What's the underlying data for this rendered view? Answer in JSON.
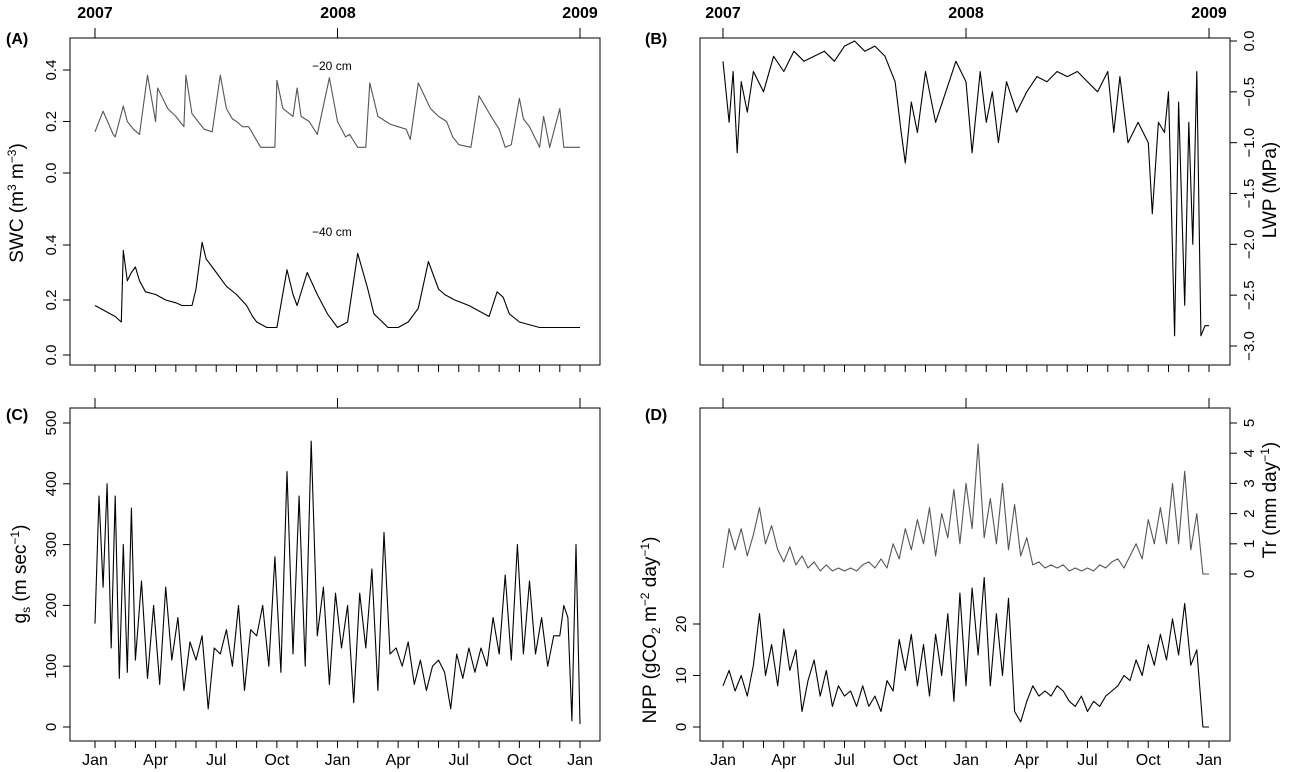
{
  "figure": {
    "year_labels": [
      "2007",
      "2008",
      "2009"
    ],
    "month_labels": [
      "Jan",
      "Apr",
      "Jul",
      "Oct",
      "Jan",
      "Apr",
      "Jul",
      "Oct",
      "Jan"
    ]
  },
  "chart_data": [
    {
      "panel": "(A)",
      "type": "line",
      "ylabel_main": "SWC (m",
      "ylabel_sup1": "3",
      "ylabel_mid": " m",
      "ylabel_sup2": "−3",
      "ylabel_end": ")",
      "yticks": [
        "0.0",
        "0.2",
        "0.4"
      ],
      "ylim": [
        0,
        0.5
      ],
      "xlim": [
        0,
        24
      ],
      "color": "#555555",
      "series": [
        {
          "name": "−20 cm",
          "color": "#555555",
          "x": [
            0,
            0.4,
            0.9,
            1.0,
            1.4,
            1.6,
            1.9,
            2.2,
            2.6,
            3.0,
            3.1,
            3.6,
            4.0,
            4.4,
            4.5,
            4.8,
            5.0,
            5.4,
            5.8,
            6.2,
            6.5,
            6.8,
            7.0,
            7.3,
            7.6,
            8.2,
            8.9,
            9.0,
            9.3,
            9.8,
            10.0,
            10.2,
            10.6,
            11.0,
            11.6,
            12.0,
            12.4,
            12.6,
            13.0,
            13.4,
            13.6,
            14.0,
            14.4,
            14.6,
            15.0,
            15.4,
            15.6,
            16.0,
            16.6,
            17.0,
            17.4,
            17.7,
            18.0,
            18.6,
            19.0,
            19.6,
            20.0,
            20.3,
            20.6,
            21.0,
            21.2,
            21.5,
            22.0,
            22.2,
            22.5,
            23.0,
            23.2,
            23.5,
            24.0
          ],
          "y": [
            0.16,
            0.24,
            0.15,
            0.14,
            0.26,
            0.2,
            0.17,
            0.15,
            0.38,
            0.2,
            0.33,
            0.25,
            0.22,
            0.18,
            0.38,
            0.23,
            0.21,
            0.17,
            0.16,
            0.38,
            0.25,
            0.21,
            0.2,
            0.18,
            0.18,
            0.1,
            0.1,
            0.36,
            0.25,
            0.22,
            0.33,
            0.22,
            0.2,
            0.15,
            0.37,
            0.2,
            0.14,
            0.15,
            0.1,
            0.1,
            0.35,
            0.22,
            0.2,
            0.19,
            0.18,
            0.17,
            0.13,
            0.35,
            0.25,
            0.22,
            0.2,
            0.14,
            0.11,
            0.1,
            0.3,
            0.22,
            0.17,
            0.1,
            0.11,
            0.29,
            0.21,
            0.18,
            0.1,
            0.22,
            0.1,
            0.25,
            0.1,
            0.1,
            0.1
          ]
        }
      ]
    },
    {
      "panel": "(A)",
      "type": "line",
      "color": "#000000",
      "yticks": [
        "0.0",
        "0.2",
        "0.4"
      ],
      "ylim": [
        0,
        0.5
      ],
      "xlim": [
        0,
        24
      ],
      "series": [
        {
          "name": "−40 cm",
          "color": "#000000",
          "x": [
            0,
            0.5,
            1.0,
            1.3,
            1.4,
            1.6,
            1.8,
            2.0,
            2.2,
            2.5,
            3.0,
            3.5,
            4.0,
            4.3,
            4.8,
            5.0,
            5.3,
            5.5,
            6.0,
            6.5,
            7.0,
            7.5,
            7.8,
            8.0,
            8.5,
            9.0,
            9.5,
            9.8,
            10.0,
            10.5,
            11.0,
            11.5,
            12.0,
            12.5,
            13.0,
            13.5,
            13.8,
            14.5,
            15.0,
            15.5,
            16.0,
            16.5,
            17.0,
            17.3,
            17.8,
            18.5,
            19.0,
            19.5,
            19.9,
            20.2,
            20.5,
            21.0,
            22.0,
            23.0,
            24.0
          ],
          "y": [
            0.18,
            0.16,
            0.14,
            0.12,
            0.38,
            0.27,
            0.3,
            0.32,
            0.27,
            0.23,
            0.22,
            0.2,
            0.19,
            0.18,
            0.18,
            0.24,
            0.41,
            0.35,
            0.3,
            0.25,
            0.22,
            0.18,
            0.14,
            0.12,
            0.1,
            0.1,
            0.31,
            0.22,
            0.18,
            0.3,
            0.22,
            0.15,
            0.1,
            0.12,
            0.37,
            0.24,
            0.15,
            0.1,
            0.1,
            0.12,
            0.17,
            0.34,
            0.24,
            0.22,
            0.2,
            0.18,
            0.16,
            0.14,
            0.23,
            0.21,
            0.15,
            0.12,
            0.1,
            0.1,
            0.1
          ]
        }
      ]
    },
    {
      "panel": "(B)",
      "type": "line",
      "ylabel": "LWP (MPa)",
      "yticks": [
        "−3.0",
        "−2.5",
        "−2.0",
        "−1.5",
        "−1.0",
        "−0.5",
        "0.0"
      ],
      "ylim": [
        -3.0,
        0.0
      ],
      "xlim": [
        0,
        24
      ],
      "color": "#000000",
      "series": [
        {
          "x": [
            0,
            0.3,
            0.5,
            0.7,
            0.9,
            1.2,
            1.5,
            2.0,
            2.5,
            3.0,
            3.5,
            4.0,
            4.5,
            5.0,
            5.5,
            6.0,
            6.5,
            7.0,
            7.5,
            8.0,
            8.5,
            8.8,
            9.0,
            9.3,
            9.6,
            10.0,
            10.5,
            11.0,
            11.5,
            12.0,
            12.3,
            12.7,
            13.0,
            13.3,
            13.6,
            14.0,
            14.5,
            15.0,
            15.5,
            16.0,
            16.5,
            17.0,
            17.5,
            18.0,
            18.5,
            19.0,
            19.3,
            19.6,
            20.0,
            20.5,
            21.0,
            21.2,
            21.5,
            21.8,
            22.0,
            22.3,
            22.5,
            22.8,
            23.0,
            23.2,
            23.4,
            23.6,
            23.8,
            24.0
          ],
          "y": [
            -0.2,
            -0.8,
            -0.3,
            -1.1,
            -0.4,
            -0.7,
            -0.3,
            -0.5,
            -0.15,
            -0.3,
            -0.1,
            -0.2,
            -0.15,
            -0.1,
            -0.2,
            -0.05,
            0.0,
            -0.1,
            -0.05,
            -0.15,
            -0.4,
            -0.9,
            -1.2,
            -0.6,
            -0.9,
            -0.3,
            -0.8,
            -0.5,
            -0.2,
            -0.4,
            -1.1,
            -0.3,
            -0.8,
            -0.5,
            -1.0,
            -0.4,
            -0.7,
            -0.5,
            -0.35,
            -0.4,
            -0.3,
            -0.35,
            -0.3,
            -0.4,
            -0.5,
            -0.3,
            -0.9,
            -0.35,
            -1.0,
            -0.8,
            -1.0,
            -1.7,
            -0.8,
            -0.9,
            -0.5,
            -2.9,
            -0.6,
            -2.6,
            -0.8,
            -2.0,
            -0.3,
            -2.9,
            -2.8,
            -2.8
          ]
        }
      ]
    },
    {
      "panel": "(C)",
      "type": "line",
      "ylabel_main": "g",
      "ylabel_sub": "s",
      "ylabel_rest": " (m sec",
      "ylabel_sup": "−1",
      "ylabel_end": ")",
      "yticks": [
        "0",
        "100",
        "200",
        "300",
        "400",
        "500"
      ],
      "ylim": [
        0,
        500
      ],
      "xlim": [
        0,
        24
      ],
      "color": "#000000",
      "series": [
        {
          "x": [
            0,
            0.2,
            0.4,
            0.6,
            0.8,
            1.0,
            1.2,
            1.4,
            1.6,
            1.8,
            2.0,
            2.3,
            2.6,
            2.9,
            3.2,
            3.5,
            3.8,
            4.1,
            4.4,
            4.7,
            5.0,
            5.3,
            5.6,
            5.9,
            6.2,
            6.5,
            6.8,
            7.1,
            7.4,
            7.7,
            8.0,
            8.3,
            8.6,
            8.9,
            9.2,
            9.5,
            9.8,
            10.1,
            10.4,
            10.7,
            11.0,
            11.3,
            11.6,
            11.9,
            12.2,
            12.5,
            12.8,
            13.1,
            13.4,
            13.7,
            14.0,
            14.3,
            14.6,
            14.9,
            15.2,
            15.5,
            15.8,
            16.1,
            16.4,
            16.7,
            17.0,
            17.3,
            17.6,
            17.9,
            18.2,
            18.5,
            18.8,
            19.1,
            19.4,
            19.7,
            20.0,
            20.3,
            20.6,
            20.9,
            21.2,
            21.5,
            21.8,
            22.1,
            22.4,
            22.7,
            23.0,
            23.2,
            23.4,
            23.6,
            23.8,
            24.0
          ],
          "y": [
            170,
            380,
            230,
            400,
            130,
            380,
            80,
            300,
            90,
            360,
            110,
            240,
            80,
            200,
            70,
            230,
            110,
            180,
            60,
            140,
            110,
            150,
            30,
            130,
            120,
            160,
            100,
            200,
            60,
            160,
            150,
            200,
            100,
            280,
            90,
            420,
            120,
            380,
            100,
            470,
            150,
            230,
            70,
            220,
            130,
            200,
            40,
            220,
            130,
            260,
            60,
            320,
            120,
            130,
            100,
            140,
            70,
            110,
            60,
            100,
            110,
            90,
            30,
            120,
            80,
            130,
            90,
            130,
            100,
            180,
            120,
            250,
            110,
            300,
            120,
            240,
            120,
            180,
            100,
            150,
            150,
            200,
            180,
            10,
            300,
            5
          ]
        }
      ]
    },
    {
      "panel": "(D)",
      "type": "line",
      "ylabel_left_main": "NPP (gCO",
      "ylabel_left_sub": "2",
      "ylabel_left_mid": " m",
      "ylabel_left_sup1": "−2",
      "ylabel_left_mid2": " day",
      "ylabel_left_sup2": "−1",
      "ylabel_left_end": ")",
      "ylabel_right_main": "Tr (mm day",
      "ylabel_right_sup": "−1",
      "ylabel_right_end": ")",
      "yticks_left": [
        "0",
        "10",
        "20"
      ],
      "yticks_right": [
        "0",
        "1",
        "2",
        "3",
        "4",
        "5"
      ],
      "ylim_left": [
        0,
        25
      ],
      "ylim_right": [
        0,
        5
      ],
      "xlim": [
        0,
        24
      ],
      "series": [
        {
          "axis": "right",
          "color": "#555555",
          "x": [
            0,
            0.3,
            0.6,
            0.9,
            1.2,
            1.5,
            1.8,
            2.1,
            2.4,
            2.7,
            3.0,
            3.3,
            3.6,
            3.9,
            4.2,
            4.5,
            4.8,
            5.1,
            5.4,
            5.7,
            6.0,
            6.3,
            6.6,
            6.9,
            7.2,
            7.5,
            7.8,
            8.1,
            8.4,
            8.7,
            9.0,
            9.3,
            9.6,
            9.9,
            10.2,
            10.5,
            10.8,
            11.1,
            11.4,
            11.7,
            12.0,
            12.3,
            12.6,
            12.9,
            13.2,
            13.5,
            13.8,
            14.1,
            14.4,
            14.7,
            15.0,
            15.3,
            15.6,
            15.9,
            16.2,
            16.5,
            16.8,
            17.1,
            17.4,
            17.7,
            18.0,
            18.3,
            18.6,
            18.9,
            19.2,
            19.5,
            19.8,
            20.1,
            20.4,
            20.7,
            21.0,
            21.3,
            21.6,
            21.9,
            22.2,
            22.5,
            22.8,
            23.1,
            23.4,
            23.7,
            24.0
          ],
          "y": [
            0.2,
            1.5,
            0.8,
            1.5,
            0.6,
            1.3,
            2.2,
            1.0,
            1.6,
            0.8,
            0.4,
            0.9,
            0.3,
            0.6,
            0.2,
            0.4,
            0.1,
            0.3,
            0.1,
            0.2,
            0.1,
            0.2,
            0.1,
            0.3,
            0.4,
            0.2,
            0.5,
            0.2,
            1.0,
            0.5,
            1.5,
            0.8,
            1.8,
            1.0,
            2.2,
            0.6,
            2.0,
            1.2,
            2.8,
            1.0,
            3.0,
            1.5,
            4.3,
            1.2,
            2.5,
            1.0,
            3.0,
            0.8,
            2.3,
            0.6,
            1.2,
            0.3,
            0.4,
            0.2,
            0.3,
            0.2,
            0.3,
            0.1,
            0.2,
            0.1,
            0.2,
            0.1,
            0.3,
            0.2,
            0.4,
            0.5,
            0.2,
            0.6,
            1.0,
            0.5,
            1.8,
            1.0,
            2.2,
            1.0,
            3.0,
            1.0,
            3.4,
            0.8,
            2.0,
            0.0,
            0.0
          ]
        },
        {
          "axis": "left",
          "color": "#000000",
          "x": [
            0,
            0.3,
            0.6,
            0.9,
            1.2,
            1.5,
            1.8,
            2.1,
            2.4,
            2.7,
            3.0,
            3.3,
            3.6,
            3.9,
            4.2,
            4.5,
            4.8,
            5.1,
            5.4,
            5.7,
            6.0,
            6.3,
            6.6,
            6.9,
            7.2,
            7.5,
            7.8,
            8.1,
            8.4,
            8.7,
            9.0,
            9.3,
            9.6,
            9.9,
            10.2,
            10.5,
            10.8,
            11.1,
            11.4,
            11.7,
            12.0,
            12.3,
            12.6,
            12.9,
            13.2,
            13.5,
            13.8,
            14.1,
            14.4,
            14.7,
            15.0,
            15.3,
            15.6,
            15.9,
            16.2,
            16.5,
            16.8,
            17.1,
            17.4,
            17.7,
            18.0,
            18.3,
            18.6,
            18.9,
            19.2,
            19.5,
            19.8,
            20.1,
            20.4,
            20.7,
            21.0,
            21.3,
            21.6,
            21.9,
            22.2,
            22.5,
            22.8,
            23.1,
            23.4,
            23.7,
            24.0
          ],
          "y": [
            8,
            11,
            7,
            10,
            6,
            12,
            22,
            10,
            16,
            8,
            19,
            11,
            15,
            3,
            9,
            13,
            6,
            11,
            4,
            8,
            6,
            7,
            4,
            8,
            4,
            6,
            3,
            9,
            7,
            17,
            11,
            18,
            8,
            16,
            6,
            18,
            10,
            22,
            5,
            26,
            8,
            27,
            14,
            29,
            8,
            22,
            10,
            25,
            3,
            1,
            5,
            8,
            6,
            7,
            6,
            8,
            7,
            5,
            4,
            6,
            3,
            5,
            4,
            6,
            7,
            8,
            10,
            9,
            13,
            10,
            16,
            12,
            18,
            13,
            21,
            14,
            24,
            12,
            15,
            0,
            0
          ]
        }
      ]
    }
  ]
}
